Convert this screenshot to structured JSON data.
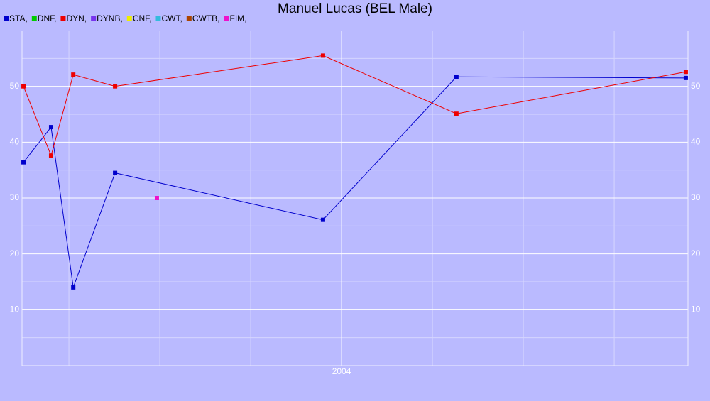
{
  "chart_data": {
    "type": "line",
    "title": "Manuel Lucas (BEL Male)",
    "xlim": [
      2003.121,
      2004.953
    ],
    "xticks": [
      {
        "value": 2004,
        "label": "2004"
      }
    ],
    "xticks_minor": [
      2003.25,
      2003.5,
      2003.75,
      2004.25,
      2004.5,
      2004.75
    ],
    "ylim": [
      0,
      60
    ],
    "yticks": [
      10,
      20,
      30,
      40,
      50
    ],
    "yticks_minor": [
      5,
      15,
      25,
      35,
      45,
      55
    ],
    "grid": true,
    "legend": "top-left",
    "series": [
      {
        "name": "STA,",
        "color": "#0000cc",
        "x": [
          2003.125,
          2003.201,
          2003.262,
          2003.377,
          2003.949,
          2004.316,
          2004.947
        ],
        "values": [
          36.4,
          42.7,
          14.0,
          34.5,
          26.1,
          51.7,
          51.5
        ]
      },
      {
        "name": "DNF,",
        "color": "#00cc00",
        "x": [],
        "values": []
      },
      {
        "name": "DYN,",
        "color": "#ee0000",
        "x": [
          2003.125,
          2003.201,
          2003.262,
          2003.377,
          2003.949,
          2004.316,
          2004.947
        ],
        "values": [
          50.0,
          37.6,
          52.1,
          50.0,
          55.5,
          45.1,
          52.6
        ]
      },
      {
        "name": "DYNB,",
        "color": "#7733ee",
        "x": [],
        "values": []
      },
      {
        "name": "CNF,",
        "color": "#eeee00",
        "x": [],
        "values": []
      },
      {
        "name": "CWT,",
        "color": "#33bbdd",
        "x": [],
        "values": []
      },
      {
        "name": "CWTB,",
        "color": "#aa4400",
        "x": [],
        "values": []
      },
      {
        "name": "FIM,",
        "color": "#ee11cc",
        "x": [
          2003.492
        ],
        "values": [
          30.0
        ]
      }
    ]
  }
}
